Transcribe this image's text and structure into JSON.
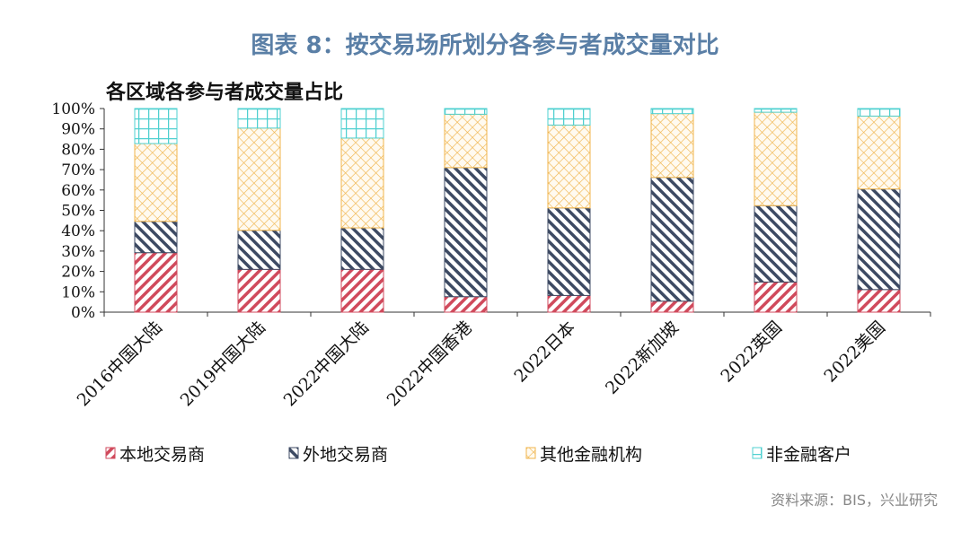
{
  "header": {
    "title": "图表 8：按交易场所划分各参与者成交量对比"
  },
  "source": "资料来源：BIS，兴业研究",
  "chart_data": {
    "type": "bar",
    "stacked": true,
    "title": "各区域各参与者成交量占比",
    "xlabel": "",
    "ylabel": "",
    "ylim": [
      0,
      100
    ],
    "yticks": [
      "0%",
      "10%",
      "20%",
      "30%",
      "40%",
      "50%",
      "60%",
      "70%",
      "80%",
      "90%",
      "100%"
    ],
    "categories": [
      "2016中国大陆",
      "2019中国大陆",
      "2022中国大陆",
      "2022中国香港",
      "2022日本",
      "2022新加坡",
      "2022英国",
      "2022美国"
    ],
    "series": [
      {
        "name": "本地交易商",
        "color": "#d04a5c",
        "pattern": "diagonal-down",
        "values": [
          29.2,
          21.0,
          21.0,
          7.6,
          8.2,
          5.4,
          14.8,
          11.1
        ]
      },
      {
        "name": "外地交易商",
        "color": "#3d4a63",
        "pattern": "diagonal-up",
        "values": [
          15.4,
          19.2,
          20.4,
          63.4,
          43.0,
          60.8,
          37.5,
          49.4
        ]
      },
      {
        "name": "其他金融机构",
        "color": "#f0b54d",
        "pattern": "diamond-cross",
        "values": [
          38.2,
          50.2,
          44.1,
          26.2,
          40.7,
          31.3,
          45.9,
          35.8
        ]
      },
      {
        "name": "非金融客户",
        "color": "#4fd0d0",
        "pattern": "grid",
        "values": [
          17.2,
          9.6,
          14.5,
          2.8,
          8.1,
          2.5,
          1.8,
          3.7
        ]
      }
    ],
    "grid": false,
    "legend": "bottom"
  }
}
